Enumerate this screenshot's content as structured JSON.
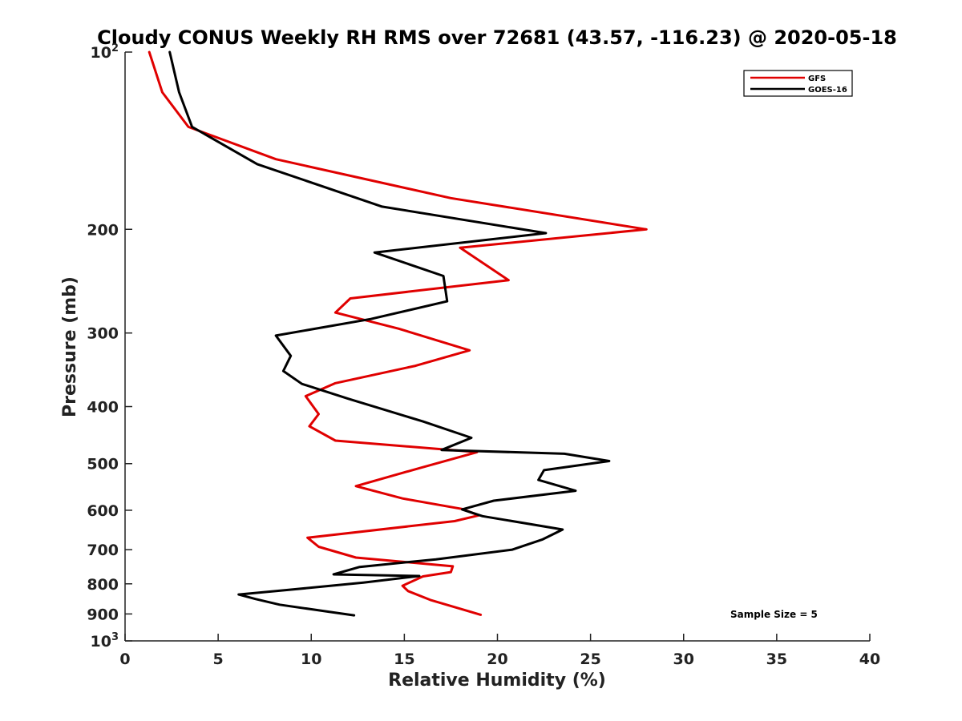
{
  "chart_data": {
    "type": "line",
    "title": "Cloudy CONUS Weekly RH RMS over 72681 (43.57, -116.23) @ 2020-05-18",
    "xlabel": "Relative Humidity (%)",
    "ylabel": "Pressure (mb)",
    "xlim": [
      0,
      40
    ],
    "ylim": [
      100,
      1000
    ],
    "y_scale": "log",
    "y_reversed": true,
    "grid": false,
    "legend_position": "top-right",
    "annotation": "Sample Size = 5",
    "x_ticks": [
      "0",
      "5",
      "10",
      "15",
      "20",
      "25",
      "30",
      "35",
      "40"
    ],
    "y_ticks": [
      {
        "value": 100,
        "base": "10",
        "sup": "2"
      },
      {
        "value": 200,
        "base": "200",
        "sup": ""
      },
      {
        "value": 300,
        "base": "300",
        "sup": ""
      },
      {
        "value": 400,
        "base": "400",
        "sup": ""
      },
      {
        "value": 500,
        "base": "500",
        "sup": ""
      },
      {
        "value": 600,
        "base": "600",
        "sup": ""
      },
      {
        "value": 700,
        "base": "700",
        "sup": ""
      },
      {
        "value": 800,
        "base": "800",
        "sup": ""
      },
      {
        "value": 900,
        "base": "900",
        "sup": ""
      },
      {
        "value": 1000,
        "base": "10",
        "sup": "3"
      }
    ],
    "series": [
      {
        "name": "GFS",
        "color": "#e00000",
        "points": [
          [
            1.3,
            100
          ],
          [
            2.0,
            117
          ],
          [
            3.4,
            134
          ],
          [
            8.1,
            152
          ],
          [
            17.5,
            177
          ],
          [
            28.0,
            200
          ],
          [
            18.0,
            215
          ],
          [
            20.6,
            244
          ],
          [
            12.1,
            262
          ],
          [
            11.3,
            277
          ],
          [
            14.7,
            295
          ],
          [
            18.5,
            321
          ],
          [
            15.6,
            341
          ],
          [
            11.3,
            365
          ],
          [
            9.7,
            384
          ],
          [
            10.4,
            412
          ],
          [
            9.9,
            432
          ],
          [
            11.3,
            457
          ],
          [
            18.9,
            478
          ],
          [
            15.8,
            509
          ],
          [
            12.4,
            546
          ],
          [
            14.9,
            573
          ],
          [
            18.1,
            597
          ],
          [
            19.0,
            612
          ],
          [
            17.7,
            626
          ],
          [
            9.8,
            668
          ],
          [
            10.4,
            692
          ],
          [
            12.4,
            722
          ],
          [
            17.6,
            747
          ],
          [
            17.5,
            764
          ],
          [
            16.0,
            777
          ],
          [
            14.9,
            806
          ],
          [
            15.2,
            823
          ],
          [
            16.4,
            852
          ],
          [
            19.1,
            903
          ]
        ]
      },
      {
        "name": "GOES-16",
        "color": "#000000",
        "points": [
          [
            2.4,
            100
          ],
          [
            2.9,
            117
          ],
          [
            3.6,
            134
          ],
          [
            7.1,
            155
          ],
          [
            13.8,
            183
          ],
          [
            22.6,
            203
          ],
          [
            13.4,
            219
          ],
          [
            17.1,
            240
          ],
          [
            17.3,
            265
          ],
          [
            13.2,
            284
          ],
          [
            8.1,
            303
          ],
          [
            8.9,
            328
          ],
          [
            8.5,
            348
          ],
          [
            9.5,
            366
          ],
          [
            12.0,
            388
          ],
          [
            16.0,
            424
          ],
          [
            18.6,
            452
          ],
          [
            17.0,
            474
          ],
          [
            23.6,
            481
          ],
          [
            26.0,
            495
          ],
          [
            22.5,
            513
          ],
          [
            22.2,
            533
          ],
          [
            24.2,
            556
          ],
          [
            19.8,
            578
          ],
          [
            18.1,
            598
          ],
          [
            19.2,
            614
          ],
          [
            23.5,
            647
          ],
          [
            22.4,
            673
          ],
          [
            20.8,
            700
          ],
          [
            16.7,
            727
          ],
          [
            12.6,
            749
          ],
          [
            11.2,
            771
          ],
          [
            15.8,
            776
          ],
          [
            12.8,
            796
          ],
          [
            8.8,
            819
          ],
          [
            6.1,
            834
          ],
          [
            7.0,
            849
          ],
          [
            8.3,
            868
          ],
          [
            10.9,
            892
          ],
          [
            12.3,
            905
          ]
        ]
      }
    ]
  }
}
